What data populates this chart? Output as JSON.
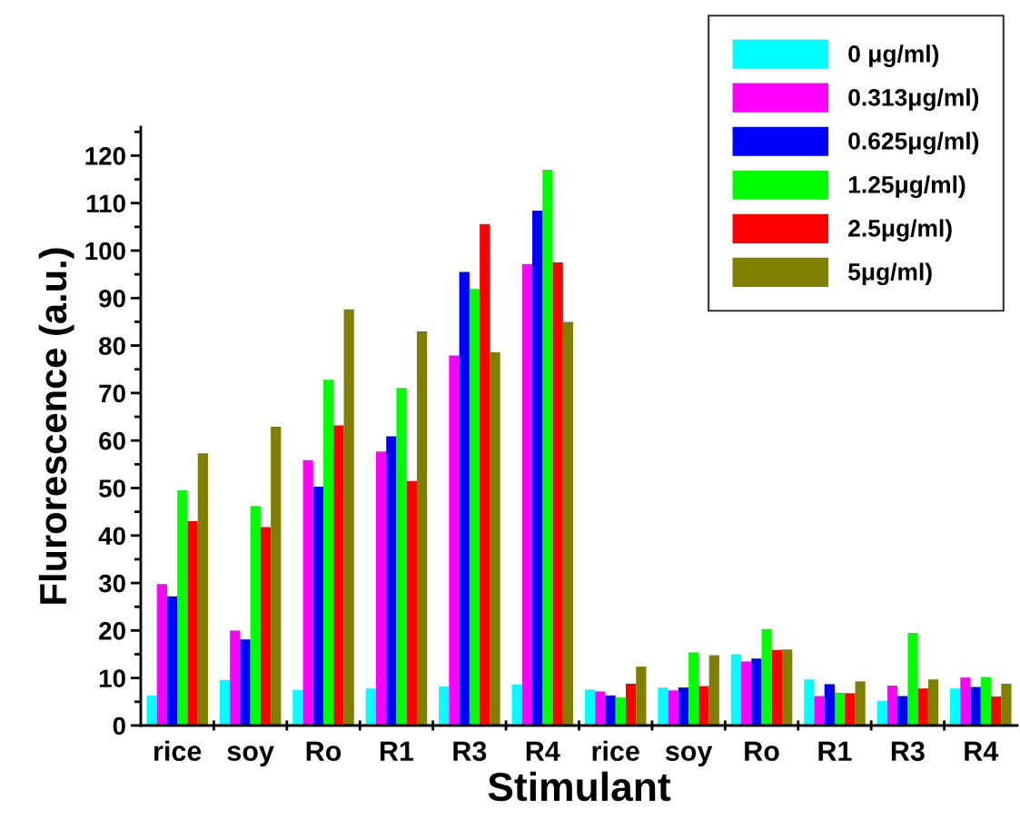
{
  "chart_data": {
    "type": "bar",
    "xlabel": "Stimulant",
    "ylabel": "Flurorescence (a.u.)",
    "categories": [
      "rice",
      "soy",
      "Ro",
      "R1",
      "R3",
      "R4",
      "rice",
      "soy",
      "Ro",
      "R1",
      "R3",
      "R4"
    ],
    "ylim": [
      0,
      126
    ],
    "yticks": [
      0,
      10,
      20,
      30,
      40,
      50,
      60,
      70,
      80,
      90,
      100,
      110,
      120
    ],
    "legend": "top right",
    "grid": false,
    "series": [
      {
        "name": "0 μg/ml)",
        "color": "#00ffff",
        "values": [
          6.3,
          9.6,
          7.5,
          7.8,
          8.2,
          8.6,
          7.6,
          8,
          15,
          9.7,
          5.2,
          7.8
        ]
      },
      {
        "name": "0.313μg/ml)",
        "color": "#ff00ff",
        "values": [
          29.8,
          20,
          55.9,
          57.7,
          77.9,
          97.2,
          7.2,
          7.4,
          13.5,
          6.2,
          8.4,
          10.1
        ]
      },
      {
        "name": "0.625μg/ml)",
        "color": "#0000ff",
        "values": [
          27.2,
          18.1,
          50.3,
          60.9,
          95.5,
          108.4,
          6.3,
          8,
          14.1,
          8.7,
          6.2,
          8.1
        ]
      },
      {
        "name": "1.25μg/ml)",
        "color": "#00ff00",
        "values": [
          49.5,
          46.2,
          72.8,
          71.1,
          91.9,
          117,
          5.9,
          15.4,
          20.3,
          6.9,
          19.5,
          10.2
        ]
      },
      {
        "name": "2.5μg/ml)",
        "color": "#ff0000",
        "values": [
          43,
          41.8,
          63.2,
          51.5,
          105.6,
          97.5,
          8.8,
          8.3,
          15.9,
          6.8,
          7.8,
          6.1
        ]
      },
      {
        "name": "5μg/ml)",
        "color": "#808000",
        "values": [
          57.3,
          62.9,
          87.6,
          83,
          78.6,
          85,
          12.4,
          14.8,
          16,
          9.3,
          9.7,
          8.8
        ]
      }
    ]
  }
}
